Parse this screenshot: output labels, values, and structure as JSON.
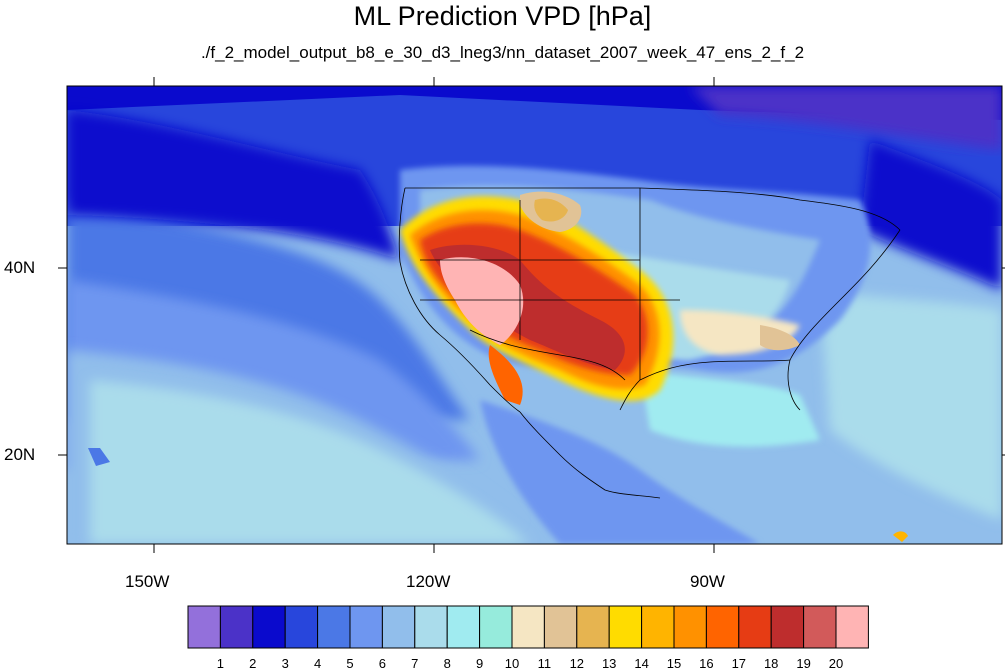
{
  "title": "ML Prediction VPD [hPa]",
  "subtitle": "./f_2_model_output_b8_e_30_d3_lneg3/nn_dataset_2007_week_47_ens_2_f_2",
  "lon_labels": [
    "150W",
    "120W",
    "90W"
  ],
  "lat_labels": [
    "40N",
    "20N"
  ],
  "colorbar": {
    "labels": [
      "1",
      "2",
      "3",
      "4",
      "5",
      "6",
      "7",
      "8",
      "9",
      "10",
      "11",
      "12",
      "13",
      "14",
      "15",
      "16",
      "17",
      "18",
      "19",
      "20"
    ],
    "colors": [
      "#9370db",
      "#4b32c8",
      "#0a0acd",
      "#2846dc",
      "#4b78e6",
      "#6e96f0",
      "#91beeb",
      "#aadceb",
      "#a0ebf0",
      "#96ebdc",
      "#f5e6c3",
      "#e1c396",
      "#e6b450",
      "#ffdc00",
      "#ffb400",
      "#ff9100",
      "#ff6400",
      "#e63c14",
      "#be2d2d",
      "#d25a5a",
      "#ffb4b4"
    ]
  }
}
